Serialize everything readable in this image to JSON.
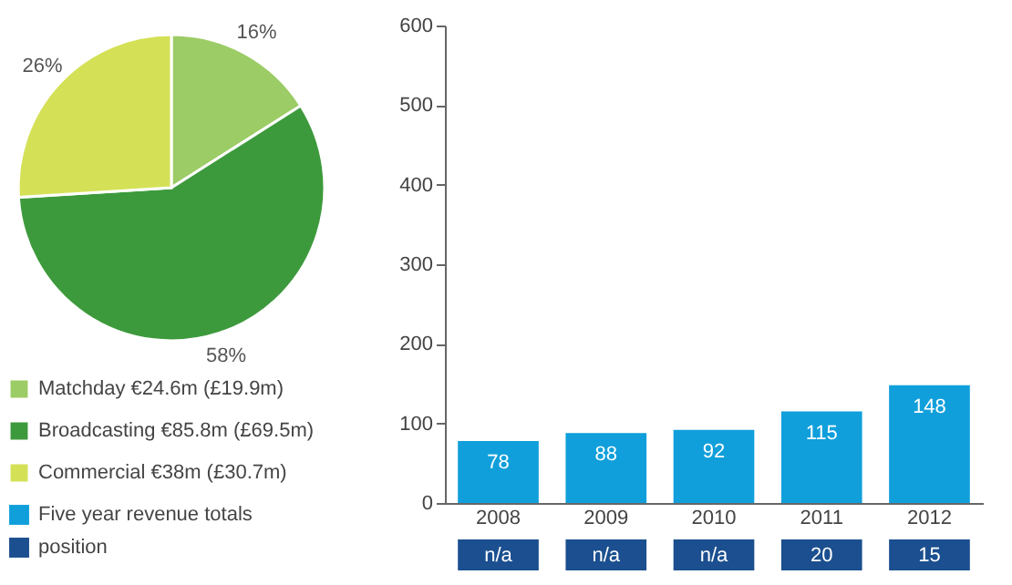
{
  "chart_data": [
    {
      "type": "pie",
      "categories": [
        "Matchday €24.6m (£19.9m)",
        "Broadcasting €85.8m (£69.5m)",
        "Commercial €38m (£30.7m)"
      ],
      "values": [
        16,
        58,
        26
      ],
      "value_labels": [
        "16%",
        "58%",
        "26%"
      ],
      "colors": [
        "#9ccc65",
        "#3d9a3c",
        "#d4e157"
      ],
      "legend": "bottom"
    },
    {
      "type": "bar",
      "categories": [
        "2008",
        "2009",
        "2010",
        "2011",
        "2012"
      ],
      "series": [
        {
          "name": "Five year revenue totals",
          "color": "#109fdb",
          "values": [
            78,
            88,
            92,
            115,
            148
          ]
        },
        {
          "name": "position",
          "color": "#1b4f8f",
          "values": [
            null,
            null,
            null,
            null,
            null
          ],
          "value_labels": [
            "n/a",
            "n/a",
            "n/a",
            "20",
            "15"
          ]
        }
      ],
      "ylim": [
        0,
        600
      ],
      "yticks": [
        0,
        100,
        200,
        300,
        400,
        500,
        600
      ],
      "grid": false,
      "data_labels": true,
      "legend": "bottom left"
    }
  ]
}
